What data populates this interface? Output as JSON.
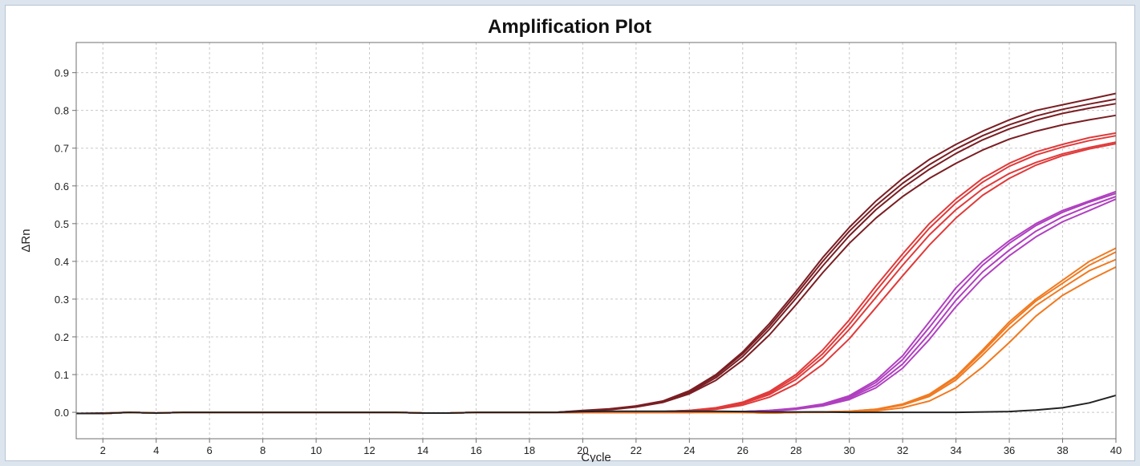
{
  "chart_data": {
    "type": "line",
    "title": "Amplification Plot",
    "xlabel": "Cycle",
    "ylabel": "ΔRn",
    "xlim": [
      1,
      40
    ],
    "ylim": [
      -0.07,
      0.98
    ],
    "grid": true,
    "x_ticks": [
      2,
      4,
      6,
      8,
      10,
      12,
      14,
      16,
      18,
      20,
      22,
      24,
      26,
      28,
      30,
      32,
      34,
      36,
      38,
      40
    ],
    "y_ticks": [
      0.0,
      0.1,
      0.2,
      0.3,
      0.4,
      0.5,
      0.6,
      0.7,
      0.8,
      0.9
    ],
    "x": [
      1,
      2,
      3,
      4,
      5,
      6,
      7,
      8,
      9,
      10,
      11,
      12,
      13,
      14,
      15,
      16,
      17,
      18,
      19,
      20,
      21,
      22,
      23,
      24,
      25,
      26,
      27,
      28,
      29,
      30,
      31,
      32,
      33,
      34,
      35,
      36,
      37,
      38,
      39,
      40
    ],
    "series": [
      {
        "color": "#7a1e23",
        "values": [
          -0.003,
          -0.003,
          0.0,
          -0.002,
          0.0,
          0.0,
          0.0,
          0.0,
          0.0,
          0.0,
          0.0,
          0.0,
          0.0,
          -0.002,
          -0.002,
          0.0,
          0.0,
          0.0,
          0.0,
          0.005,
          0.009,
          0.017,
          0.03,
          0.057,
          0.1,
          0.16,
          0.235,
          0.32,
          0.41,
          0.49,
          0.56,
          0.62,
          0.67,
          0.71,
          0.745,
          0.775,
          0.8,
          0.815,
          0.83,
          0.845
        ]
      },
      {
        "color": "#7a1e23",
        "values": [
          -0.003,
          -0.002,
          0.0,
          -0.002,
          0.0,
          0.0,
          0.0,
          0.0,
          0.0,
          0.0,
          0.0,
          0.0,
          0.0,
          -0.002,
          -0.002,
          0.0,
          0.0,
          0.0,
          0.0,
          0.004,
          0.008,
          0.016,
          0.029,
          0.055,
          0.097,
          0.155,
          0.228,
          0.312,
          0.4,
          0.48,
          0.548,
          0.607,
          0.656,
          0.698,
          0.733,
          0.762,
          0.785,
          0.803,
          0.817,
          0.83
        ]
      },
      {
        "color": "#7a1e23",
        "values": [
          -0.003,
          -0.003,
          0.0,
          -0.002,
          0.0,
          0.0,
          0.0,
          0.0,
          0.0,
          0.0,
          0.0,
          0.0,
          0.0,
          -0.002,
          -0.002,
          0.0,
          0.0,
          0.0,
          0.0,
          0.004,
          0.008,
          0.015,
          0.028,
          0.052,
          0.092,
          0.148,
          0.22,
          0.302,
          0.388,
          0.468,
          0.537,
          0.595,
          0.644,
          0.686,
          0.722,
          0.751,
          0.774,
          0.792,
          0.806,
          0.818
        ]
      },
      {
        "color": "#7a1e23",
        "values": [
          -0.003,
          -0.003,
          0.0,
          -0.002,
          0.0,
          0.0,
          0.0,
          0.0,
          0.0,
          0.0,
          0.0,
          0.0,
          0.0,
          -0.002,
          -0.002,
          0.0,
          0.0,
          0.0,
          0.0,
          0.004,
          0.007,
          0.014,
          0.026,
          0.049,
          0.085,
          0.138,
          0.205,
          0.285,
          0.37,
          0.448,
          0.515,
          0.572,
          0.62,
          0.66,
          0.695,
          0.724,
          0.745,
          0.762,
          0.775,
          0.787
        ]
      },
      {
        "color": "#e03a3a",
        "values": [
          -0.003,
          -0.003,
          0.0,
          -0.002,
          0.0,
          0.0,
          0.0,
          0.0,
          0.0,
          0.0,
          0.0,
          0.0,
          0.0,
          -0.002,
          -0.002,
          0.0,
          0.0,
          0.0,
          0.0,
          0.0,
          0.0,
          0.0,
          0.002,
          0.005,
          0.012,
          0.027,
          0.055,
          0.1,
          0.165,
          0.245,
          0.335,
          0.42,
          0.5,
          0.565,
          0.62,
          0.66,
          0.69,
          0.71,
          0.728,
          0.74
        ]
      },
      {
        "color": "#e03a3a",
        "values": [
          -0.003,
          -0.003,
          0.0,
          -0.002,
          0.0,
          0.0,
          0.0,
          0.0,
          0.0,
          0.0,
          0.0,
          0.0,
          0.0,
          -0.002,
          -0.002,
          0.0,
          0.0,
          0.0,
          0.0,
          0.0,
          0.0,
          0.0,
          0.002,
          0.005,
          0.011,
          0.025,
          0.051,
          0.094,
          0.155,
          0.233,
          0.322,
          0.408,
          0.488,
          0.555,
          0.61,
          0.652,
          0.682,
          0.703,
          0.72,
          0.733
        ]
      },
      {
        "color": "#e03a3a",
        "values": [
          -0.003,
          -0.003,
          0.0,
          -0.002,
          0.0,
          0.0,
          0.0,
          0.0,
          0.0,
          0.0,
          0.0,
          0.0,
          0.0,
          -0.002,
          -0.002,
          0.0,
          0.0,
          0.0,
          0.0,
          0.0,
          0.0,
          0.0,
          0.002,
          0.004,
          0.01,
          0.023,
          0.047,
          0.087,
          0.145,
          0.22,
          0.305,
          0.39,
          0.47,
          0.537,
          0.592,
          0.633,
          0.662,
          0.685,
          0.702,
          0.716
        ]
      },
      {
        "color": "#e03a3a",
        "values": [
          -0.003,
          -0.003,
          0.0,
          -0.002,
          0.0,
          0.0,
          0.0,
          0.0,
          0.0,
          0.0,
          0.0,
          0.0,
          0.0,
          -0.002,
          -0.002,
          0.0,
          0.0,
          0.0,
          0.0,
          0.0,
          0.0,
          0.0,
          0.001,
          0.003,
          0.008,
          0.019,
          0.04,
          0.075,
          0.127,
          0.195,
          0.278,
          0.362,
          0.443,
          0.515,
          0.575,
          0.62,
          0.655,
          0.68,
          0.698,
          0.712
        ]
      },
      {
        "color": "#b040c0",
        "values": [
          -0.003,
          -0.003,
          0.0,
          -0.002,
          0.0,
          0.0,
          0.0,
          0.0,
          0.0,
          0.0,
          0.0,
          0.0,
          0.0,
          -0.002,
          -0.002,
          0.0,
          0.0,
          0.0,
          0.0,
          0.0,
          0.0,
          0.0,
          0.0,
          0.0,
          0.001,
          0.002,
          0.005,
          0.011,
          0.022,
          0.044,
          0.085,
          0.15,
          0.24,
          0.33,
          0.4,
          0.455,
          0.5,
          0.535,
          0.56,
          0.585
        ]
      },
      {
        "color": "#b040c0",
        "values": [
          -0.003,
          -0.003,
          0.0,
          -0.002,
          0.0,
          0.0,
          0.0,
          0.0,
          0.0,
          0.0,
          0.0,
          0.0,
          0.0,
          -0.002,
          -0.002,
          0.0,
          0.0,
          0.0,
          0.0,
          0.0,
          0.0,
          0.0,
          0.0,
          0.0,
          0.001,
          0.002,
          0.005,
          0.01,
          0.021,
          0.041,
          0.079,
          0.14,
          0.225,
          0.315,
          0.39,
          0.448,
          0.495,
          0.53,
          0.557,
          0.58
        ]
      },
      {
        "color": "#b040c0",
        "values": [
          -0.003,
          -0.003,
          0.0,
          -0.002,
          0.0,
          0.0,
          0.0,
          0.0,
          0.0,
          0.0,
          0.0,
          0.0,
          0.0,
          -0.002,
          -0.002,
          0.0,
          0.0,
          0.0,
          0.0,
          0.0,
          0.0,
          0.0,
          0.0,
          0.0,
          0.001,
          0.002,
          0.004,
          0.009,
          0.019,
          0.038,
          0.072,
          0.128,
          0.208,
          0.297,
          0.372,
          0.43,
          0.48,
          0.518,
          0.547,
          0.572
        ]
      },
      {
        "color": "#b040c0",
        "values": [
          -0.003,
          -0.003,
          0.0,
          -0.002,
          0.0,
          0.0,
          0.0,
          0.0,
          0.0,
          0.0,
          0.0,
          0.0,
          0.0,
          -0.002,
          -0.002,
          0.0,
          0.0,
          0.0,
          0.0,
          0.0,
          0.0,
          0.0,
          0.0,
          0.0,
          0.001,
          0.001,
          0.003,
          0.008,
          0.017,
          0.034,
          0.065,
          0.117,
          0.193,
          0.28,
          0.355,
          0.415,
          0.465,
          0.505,
          0.535,
          0.565
        ]
      },
      {
        "color": "#f07a20",
        "values": [
          -0.003,
          -0.003,
          0.0,
          -0.002,
          0.0,
          0.0,
          0.0,
          0.0,
          0.0,
          0.0,
          0.0,
          0.0,
          0.0,
          -0.002,
          -0.002,
          0.0,
          0.0,
          0.0,
          0.0,
          0.0,
          0.0,
          0.0,
          0.0,
          0.0,
          0.0,
          0.0,
          -0.002,
          0.0,
          0.001,
          0.003,
          0.008,
          0.022,
          0.048,
          0.095,
          0.165,
          0.24,
          0.3,
          0.35,
          0.4,
          0.435
        ]
      },
      {
        "color": "#f07a20",
        "values": [
          -0.003,
          -0.003,
          0.0,
          -0.002,
          0.0,
          0.0,
          0.0,
          0.0,
          0.0,
          0.0,
          0.0,
          0.0,
          0.0,
          -0.002,
          -0.002,
          0.0,
          0.0,
          0.0,
          0.0,
          0.0,
          0.0,
          0.0,
          0.0,
          0.0,
          0.0,
          0.0,
          -0.002,
          0.0,
          0.001,
          0.003,
          0.008,
          0.021,
          0.046,
          0.092,
          0.16,
          0.233,
          0.295,
          0.342,
          0.39,
          0.425
        ]
      },
      {
        "color": "#f07a20",
        "values": [
          -0.003,
          -0.003,
          0.0,
          -0.002,
          0.0,
          0.0,
          0.0,
          0.0,
          0.0,
          0.0,
          0.0,
          0.0,
          0.0,
          -0.002,
          -0.002,
          0.0,
          0.0,
          0.0,
          0.0,
          0.0,
          0.0,
          0.0,
          0.0,
          0.0,
          0.0,
          0.0,
          -0.002,
          0.0,
          0.001,
          0.002,
          0.007,
          0.019,
          0.042,
          0.086,
          0.152,
          0.222,
          0.283,
          0.33,
          0.375,
          0.405
        ]
      },
      {
        "color": "#f07a20",
        "values": [
          -0.003,
          -0.003,
          0.0,
          -0.002,
          0.0,
          0.0,
          0.0,
          0.0,
          0.0,
          0.0,
          0.0,
          0.0,
          0.0,
          -0.002,
          -0.002,
          0.0,
          0.0,
          0.0,
          0.0,
          0.0,
          0.0,
          0.0,
          0.0,
          0.0,
          0.0,
          0.0,
          -0.002,
          0.0,
          0.0,
          0.001,
          0.004,
          0.012,
          0.03,
          0.065,
          0.12,
          0.185,
          0.255,
          0.31,
          0.35,
          0.385
        ]
      },
      {
        "color": "#222222",
        "values": [
          -0.003,
          -0.003,
          0.0,
          -0.002,
          0.0,
          0.0,
          0.0,
          0.0,
          0.0,
          0.0,
          0.0,
          0.0,
          0.0,
          -0.002,
          -0.002,
          0.0,
          0.0,
          0.0,
          0.0,
          0.002,
          0.003,
          0.003,
          0.003,
          0.003,
          0.003,
          0.002,
          0.001,
          0.001,
          0.001,
          0.0,
          0.0,
          0.0,
          0.0,
          0.0,
          0.001,
          0.002,
          0.006,
          0.012,
          0.025,
          0.045
        ]
      }
    ]
  }
}
